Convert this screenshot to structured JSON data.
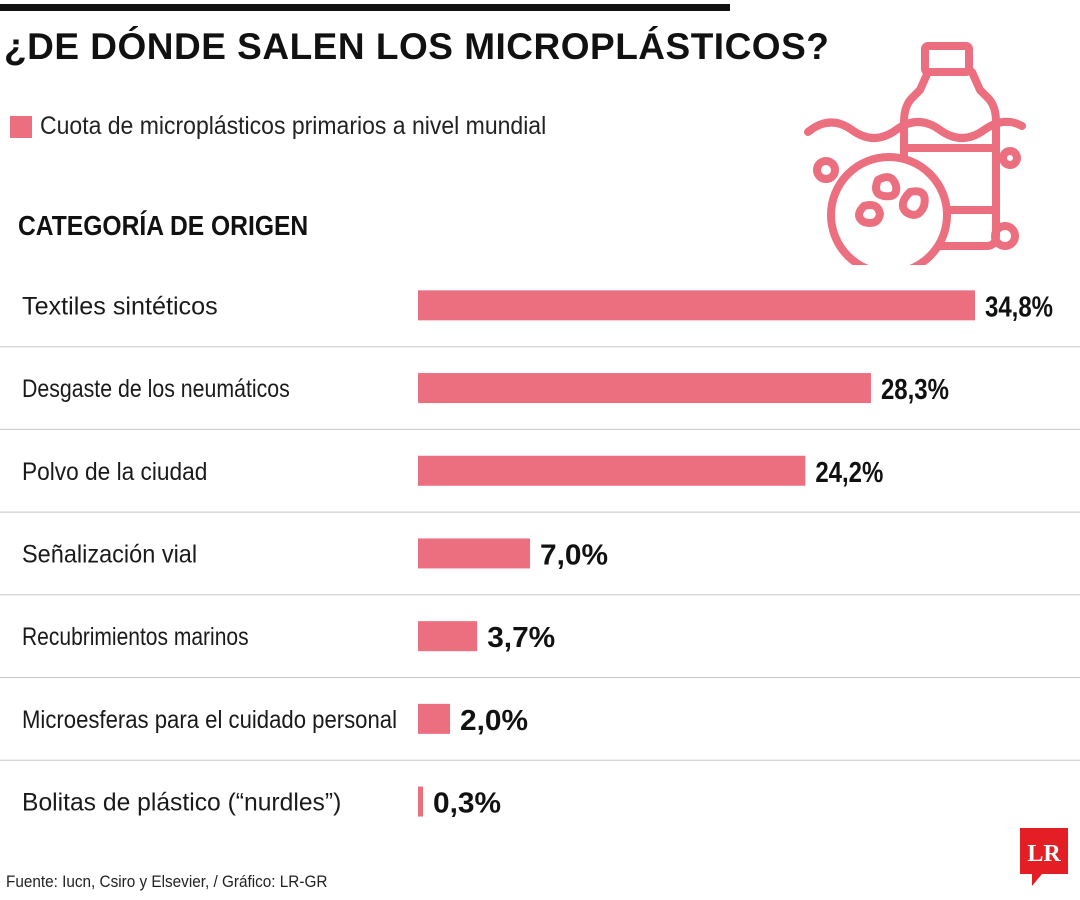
{
  "header": {
    "title": "¿DE DÓNDE SALEN LOS MICROPLÁSTICOS?",
    "legend_label": "Cuota de microplásticos primarios a nivel mundial"
  },
  "section_heading": "CATEGORÍA DE ORIGEN",
  "illustration_icon": "plastic-bottle-microplastics-icon",
  "footer": {
    "source": "Fuente: Iucn, Csiro y Elsevier, / Gráfico: LR-GR",
    "logo_text": "LR"
  },
  "colors": {
    "bar": "#ec6f80",
    "logo_bg": "#e31e24",
    "divider": "#c8c8c8"
  },
  "chart_data": {
    "type": "bar",
    "orientation": "horizontal",
    "categories": [
      "Textiles sintéticos",
      "Desgaste de los neumáticos",
      "Polvo de la ciudad",
      "Señalización vial",
      "Recubrimientos marinos",
      "Microesferas para el cuidado personal",
      "Bolitas de plástico (“nurdles”)"
    ],
    "values": [
      34.8,
      28.3,
      24.2,
      7.0,
      3.7,
      2.0,
      0.3
    ],
    "value_labels": [
      "34,8%",
      "28,3%",
      "24,2%",
      "7,0%",
      "3,7%",
      "2,0%",
      "0,3%"
    ],
    "unit": "%",
    "xlim": [
      0,
      34.8
    ],
    "grid": false
  }
}
